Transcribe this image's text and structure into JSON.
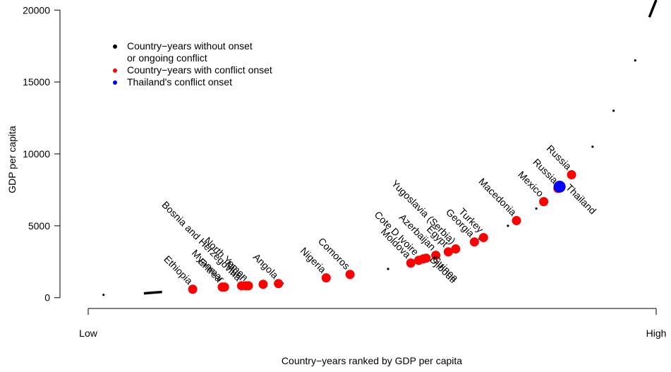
{
  "chart_data": {
    "type": "scatter",
    "xlabel": "Country−years ranked by GDP per capita",
    "ylabel": "GDP per capita",
    "xlim": [
      0,
      100
    ],
    "xticks": [
      {
        "value": 0,
        "label": "Low"
      },
      {
        "value": 100,
        "label": "High"
      }
    ],
    "ylim": [
      -700,
      20700
    ],
    "yticks": [
      0,
      5000,
      10000,
      15000,
      20000
    ],
    "legend": "top-left",
    "series": [
      {
        "name": "Country−years without onset or ongoing conflict",
        "color": "#000000",
        "x": [
          2.7,
          9.8,
          11.3,
          13,
          18,
          24.2,
          28,
          34.2,
          41.6,
          46.6,
          52.8,
          59,
          64,
          68.9,
          73.9,
          78.9,
          82.6,
          85.1,
          88.8,
          92.5,
          96.3,
          98.8,
          100
        ],
        "values": [
          200,
          300,
          350,
          400,
          550,
          700,
          800,
          1000,
          1300,
          1600,
          2000,
          2700,
          3300,
          4100,
          5000,
          6200,
          7500,
          8500,
          10500,
          13000,
          16500,
          19500,
          20700
        ]
      },
      {
        "name": "Country−years with conflict onset",
        "color": "#ff0000",
        "x": [
          18.4,
          23.6,
          24,
          27,
          27.7,
          28.2,
          30.8,
          33.5,
          41.9,
          46.1,
          56.8,
          58.2,
          59,
          59.5,
          61.2,
          63.4,
          64.7,
          68,
          69.6,
          75.4,
          80.2,
          82.7,
          85.1
        ],
        "values": [
          590,
          740,
          740,
          830,
          830,
          830,
          930,
          980,
          1380,
          1620,
          2410,
          2600,
          2700,
          2750,
          2950,
          3190,
          3390,
          3880,
          4180,
          5360,
          6680,
          7600,
          8550
        ],
        "labels": [
          "Ethiopia",
          "Eritrea",
          "Myanmar",
          "Bosnia and Herzegovina",
          "Niger",
          "North Yemen",
          null,
          "Angola",
          "Nigeria",
          "Comoros",
          "Moldova",
          "Cote D.Ivoire",
          "Djibouti",
          "Guinea",
          "Azerbaijan",
          "Egypt",
          "Yugoslavia (Serbia)",
          "Georgia",
          "Turkey",
          "Macedonia",
          "Mexico",
          "Russia",
          "Russia"
        ]
      },
      {
        "name": "Thailand's conflict onset",
        "color": "#0000ff",
        "x": [
          83
        ],
        "values": [
          7720
        ],
        "labels": [
          "Thailand"
        ]
      }
    ]
  }
}
